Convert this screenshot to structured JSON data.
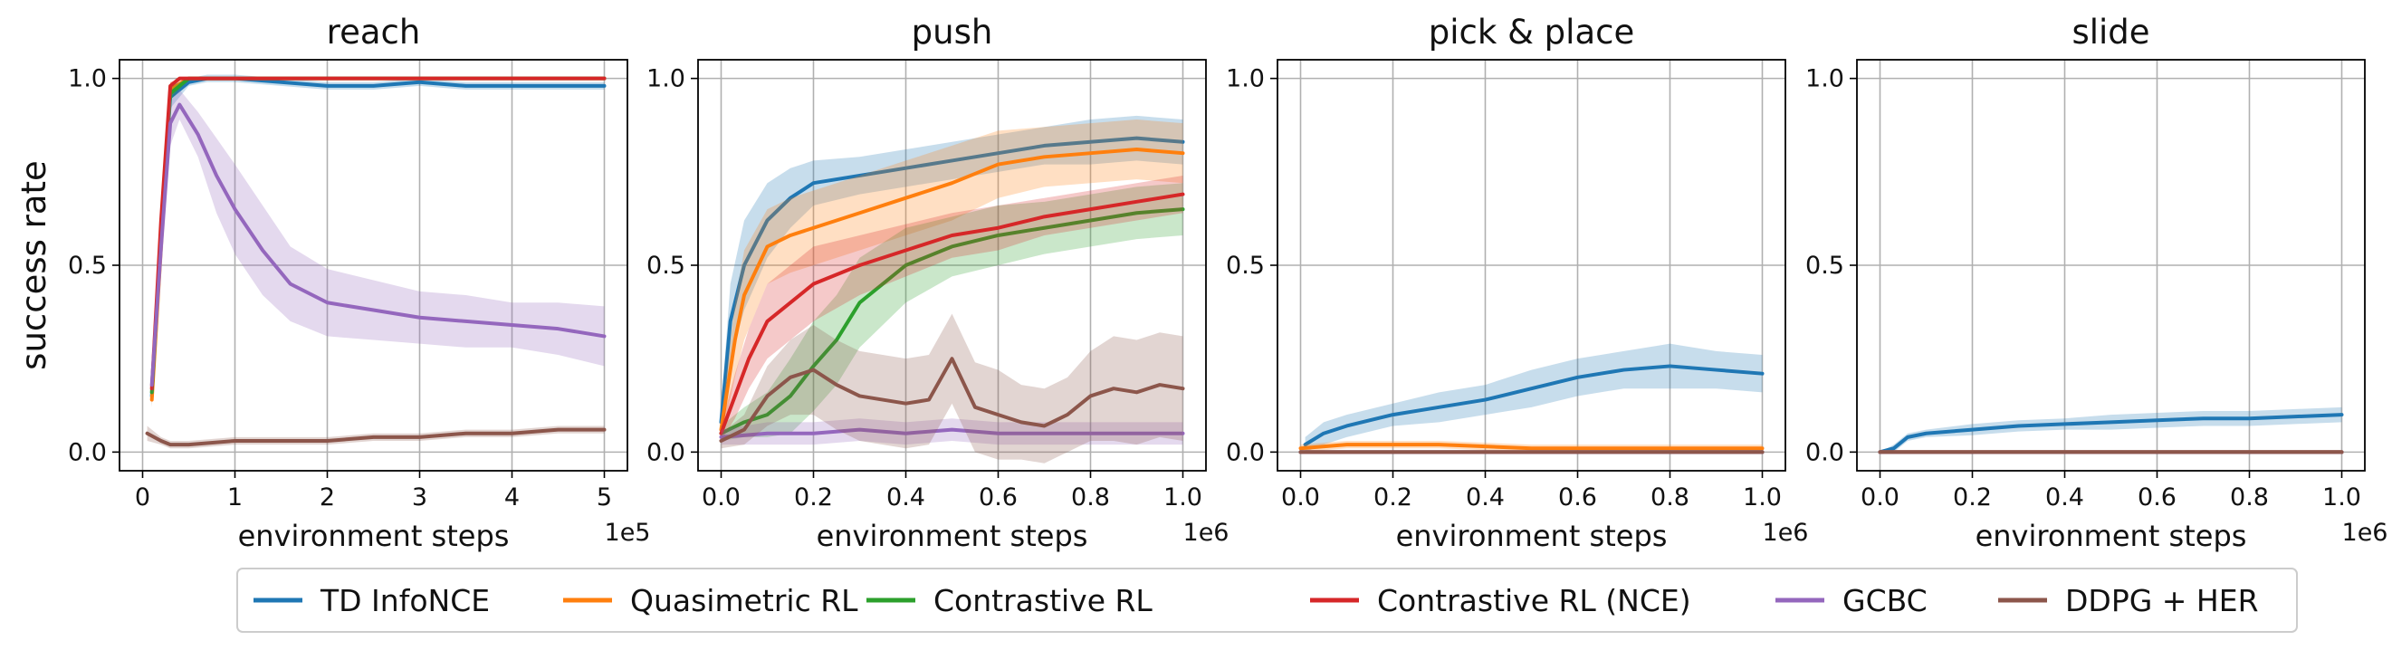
{
  "chart_data": [
    {
      "type": "line",
      "title": "reach",
      "xlabel": "environment steps",
      "ylabel": "success rate",
      "x_multiplier": "1e5",
      "xlim": [
        -0.25,
        5.25
      ],
      "ylim": [
        -0.05,
        1.05
      ],
      "xticks": [
        0,
        1,
        2,
        3,
        4,
        5
      ],
      "xtick_labels": [
        "0",
        "1",
        "2",
        "3",
        "4",
        "5"
      ],
      "yticks": [
        0.0,
        0.5,
        1.0
      ],
      "ytick_labels": [
        "0.0",
        "0.5",
        "1.0"
      ],
      "grid": true,
      "series": [
        {
          "name": "TD InfoNCE",
          "color": "#1f77b4",
          "x": [
            0.1,
            0.2,
            0.3,
            0.5,
            0.7,
            1.0,
            1.5,
            2.0,
            2.5,
            3.0,
            3.5,
            4.0,
            4.5,
            5.0
          ],
          "y": [
            0.15,
            0.6,
            0.95,
            0.99,
            1.0,
            1.0,
            0.99,
            0.98,
            0.98,
            0.99,
            0.98,
            0.98,
            0.98,
            0.98
          ],
          "band": [
            0.03,
            0.06,
            0.03,
            0.01,
            0.01,
            0.01,
            0.01,
            0.01,
            0.01,
            0.01,
            0.01,
            0.01,
            0.01,
            0.01
          ]
        },
        {
          "name": "Quasimetric RL",
          "color": "#ff7f0e",
          "x": [
            0.1,
            0.2,
            0.3,
            0.5,
            1.0,
            2.0,
            3.0,
            4.0,
            5.0
          ],
          "y": [
            0.14,
            0.55,
            0.97,
            1.0,
            1.0,
            1.0,
            1.0,
            1.0,
            1.0
          ],
          "band": [
            0.02,
            0.04,
            0.02,
            0.0,
            0.0,
            0.0,
            0.0,
            0.0,
            0.0
          ]
        },
        {
          "name": "Contrastive RL",
          "color": "#2ca02c",
          "x": [
            0.1,
            0.2,
            0.3,
            0.5,
            1.0,
            2.0,
            3.0,
            4.0,
            5.0
          ],
          "y": [
            0.16,
            0.58,
            0.96,
            1.0,
            1.0,
            1.0,
            1.0,
            1.0,
            1.0
          ],
          "band": [
            0.02,
            0.04,
            0.02,
            0.0,
            0.0,
            0.0,
            0.0,
            0.0,
            0.0
          ]
        },
        {
          "name": "Contrastive RL (NCE)",
          "color": "#d62728",
          "x": [
            0.1,
            0.2,
            0.3,
            0.4,
            0.6,
            1.0,
            2.0,
            3.0,
            4.0,
            5.0
          ],
          "y": [
            0.17,
            0.62,
            0.98,
            1.0,
            1.0,
            1.0,
            1.0,
            1.0,
            1.0,
            1.0
          ],
          "band": [
            0.02,
            0.04,
            0.01,
            0.0,
            0.0,
            0.0,
            0.0,
            0.0,
            0.0,
            0.0
          ]
        },
        {
          "name": "GCBC",
          "color": "#9467bd",
          "x": [
            0.1,
            0.2,
            0.3,
            0.4,
            0.6,
            0.8,
            1.0,
            1.3,
            1.6,
            2.0,
            2.5,
            3.0,
            3.5,
            4.0,
            4.5,
            5.0
          ],
          "y": [
            0.18,
            0.55,
            0.88,
            0.93,
            0.85,
            0.74,
            0.65,
            0.54,
            0.45,
            0.4,
            0.38,
            0.36,
            0.35,
            0.34,
            0.33,
            0.31
          ],
          "band": [
            0.04,
            0.08,
            0.06,
            0.04,
            0.06,
            0.1,
            0.12,
            0.12,
            0.1,
            0.09,
            0.08,
            0.07,
            0.07,
            0.06,
            0.07,
            0.08
          ]
        },
        {
          "name": "DDPG + HER",
          "color": "#8c564b",
          "x": [
            0.05,
            0.2,
            0.3,
            0.5,
            1.0,
            1.5,
            2.0,
            2.5,
            3.0,
            3.5,
            4.0,
            4.5,
            5.0
          ],
          "y": [
            0.05,
            0.03,
            0.02,
            0.02,
            0.03,
            0.03,
            0.03,
            0.04,
            0.04,
            0.05,
            0.05,
            0.06,
            0.06
          ],
          "band": [
            0.02,
            0.01,
            0.01,
            0.01,
            0.01,
            0.01,
            0.01,
            0.01,
            0.01,
            0.01,
            0.01,
            0.01,
            0.01
          ]
        }
      ]
    },
    {
      "type": "line",
      "title": "push",
      "xlabel": "environment steps",
      "x_multiplier": "1e6",
      "xlim": [
        -0.05,
        1.05
      ],
      "ylim": [
        -0.05,
        1.05
      ],
      "xticks": [
        0.0,
        0.2,
        0.4,
        0.6,
        0.8,
        1.0
      ],
      "xtick_labels": [
        "0.0",
        "0.2",
        "0.4",
        "0.6",
        "0.8",
        "1.0"
      ],
      "yticks": [
        0.0,
        0.5,
        1.0
      ],
      "ytick_labels": [
        "0.0",
        "0.5",
        "1.0"
      ],
      "grid": true,
      "series": [
        {
          "name": "TD InfoNCE",
          "color": "#1f77b4",
          "x": [
            0.0,
            0.02,
            0.05,
            0.1,
            0.15,
            0.2,
            0.3,
            0.4,
            0.5,
            0.6,
            0.7,
            0.8,
            0.9,
            1.0
          ],
          "y": [
            0.08,
            0.35,
            0.5,
            0.62,
            0.68,
            0.72,
            0.74,
            0.76,
            0.78,
            0.8,
            0.82,
            0.83,
            0.84,
            0.83
          ],
          "band": [
            0.04,
            0.1,
            0.12,
            0.1,
            0.08,
            0.06,
            0.05,
            0.05,
            0.05,
            0.05,
            0.05,
            0.06,
            0.06,
            0.06
          ]
        },
        {
          "name": "Quasimetric RL",
          "color": "#ff7f0e",
          "x": [
            0.0,
            0.03,
            0.05,
            0.1,
            0.15,
            0.2,
            0.3,
            0.4,
            0.5,
            0.6,
            0.7,
            0.8,
            0.9,
            1.0
          ],
          "y": [
            0.06,
            0.3,
            0.42,
            0.55,
            0.58,
            0.6,
            0.64,
            0.68,
            0.72,
            0.77,
            0.79,
            0.8,
            0.81,
            0.8
          ],
          "band": [
            0.03,
            0.1,
            0.12,
            0.1,
            0.1,
            0.1,
            0.1,
            0.1,
            0.1,
            0.09,
            0.08,
            0.08,
            0.08,
            0.08
          ]
        },
        {
          "name": "Contrastive RL",
          "color": "#2ca02c",
          "x": [
            0.0,
            0.05,
            0.1,
            0.15,
            0.2,
            0.25,
            0.3,
            0.4,
            0.5,
            0.6,
            0.7,
            0.8,
            0.9,
            1.0
          ],
          "y": [
            0.05,
            0.08,
            0.1,
            0.15,
            0.23,
            0.3,
            0.4,
            0.5,
            0.55,
            0.58,
            0.6,
            0.62,
            0.64,
            0.65
          ],
          "band": [
            0.02,
            0.04,
            0.06,
            0.1,
            0.12,
            0.12,
            0.12,
            0.1,
            0.08,
            0.08,
            0.07,
            0.07,
            0.07,
            0.07
          ]
        },
        {
          "name": "Contrastive RL (NCE)",
          "color": "#d62728",
          "x": [
            0.0,
            0.03,
            0.06,
            0.1,
            0.15,
            0.2,
            0.3,
            0.4,
            0.5,
            0.6,
            0.7,
            0.8,
            0.9,
            1.0
          ],
          "y": [
            0.05,
            0.15,
            0.25,
            0.35,
            0.4,
            0.45,
            0.5,
            0.54,
            0.58,
            0.6,
            0.63,
            0.65,
            0.67,
            0.69
          ],
          "band": [
            0.02,
            0.06,
            0.08,
            0.1,
            0.1,
            0.1,
            0.08,
            0.07,
            0.06,
            0.06,
            0.05,
            0.05,
            0.05,
            0.05
          ]
        },
        {
          "name": "GCBC",
          "color": "#9467bd",
          "x": [
            0.0,
            0.1,
            0.2,
            0.3,
            0.4,
            0.5,
            0.6,
            0.7,
            0.8,
            0.9,
            1.0
          ],
          "y": [
            0.04,
            0.05,
            0.05,
            0.06,
            0.05,
            0.06,
            0.05,
            0.05,
            0.05,
            0.05,
            0.05
          ],
          "band": [
            0.02,
            0.03,
            0.03,
            0.03,
            0.03,
            0.03,
            0.03,
            0.03,
            0.03,
            0.03,
            0.03
          ]
        },
        {
          "name": "DDPG + HER",
          "color": "#8c564b",
          "x": [
            0.0,
            0.05,
            0.1,
            0.15,
            0.2,
            0.25,
            0.3,
            0.35,
            0.4,
            0.45,
            0.5,
            0.55,
            0.6,
            0.65,
            0.7,
            0.75,
            0.8,
            0.85,
            0.9,
            0.95,
            1.0
          ],
          "y": [
            0.03,
            0.06,
            0.15,
            0.2,
            0.22,
            0.18,
            0.15,
            0.14,
            0.13,
            0.14,
            0.25,
            0.12,
            0.1,
            0.08,
            0.07,
            0.1,
            0.15,
            0.17,
            0.16,
            0.18,
            0.17
          ],
          "band": [
            0.02,
            0.04,
            0.08,
            0.1,
            0.12,
            0.12,
            0.12,
            0.12,
            0.12,
            0.12,
            0.12,
            0.12,
            0.12,
            0.1,
            0.1,
            0.1,
            0.12,
            0.14,
            0.14,
            0.14,
            0.14
          ]
        }
      ]
    },
    {
      "type": "line",
      "title": "pick & place",
      "xlabel": "environment steps",
      "x_multiplier": "1e6",
      "xlim": [
        -0.05,
        1.05
      ],
      "ylim": [
        -0.05,
        1.05
      ],
      "xticks": [
        0.0,
        0.2,
        0.4,
        0.6,
        0.8,
        1.0
      ],
      "xtick_labels": [
        "0.0",
        "0.2",
        "0.4",
        "0.6",
        "0.8",
        "1.0"
      ],
      "yticks": [
        0.0,
        0.5,
        1.0
      ],
      "ytick_labels": [
        "0.0",
        "0.5",
        "1.0"
      ],
      "grid": true,
      "series": [
        {
          "name": "TD InfoNCE",
          "color": "#1f77b4",
          "x": [
            0.01,
            0.05,
            0.1,
            0.2,
            0.3,
            0.4,
            0.5,
            0.6,
            0.7,
            0.8,
            0.9,
            1.0
          ],
          "y": [
            0.02,
            0.05,
            0.07,
            0.1,
            0.12,
            0.14,
            0.17,
            0.2,
            0.22,
            0.23,
            0.22,
            0.21
          ],
          "band": [
            0.02,
            0.03,
            0.03,
            0.03,
            0.04,
            0.04,
            0.05,
            0.05,
            0.05,
            0.06,
            0.05,
            0.05
          ]
        },
        {
          "name": "Quasimetric RL",
          "color": "#ff7f0e",
          "x": [
            0.0,
            0.1,
            0.2,
            0.3,
            0.4,
            0.5,
            0.6,
            0.7,
            0.8,
            0.9,
            1.0
          ],
          "y": [
            0.01,
            0.02,
            0.02,
            0.02,
            0.015,
            0.01,
            0.01,
            0.01,
            0.01,
            0.01,
            0.01
          ],
          "band": [
            0.01,
            0.01,
            0.01,
            0.01,
            0.01,
            0.01,
            0.01,
            0.01,
            0.01,
            0.01,
            0.01
          ]
        },
        {
          "name": "Contrastive RL",
          "color": "#2ca02c",
          "x": [
            0.0,
            0.5,
            1.0
          ],
          "y": [
            0.0,
            0.0,
            0.0
          ],
          "band": [
            0.0,
            0.0,
            0.0
          ]
        },
        {
          "name": "Contrastive RL (NCE)",
          "color": "#d62728",
          "x": [
            0.0,
            0.5,
            1.0
          ],
          "y": [
            0.0,
            0.0,
            0.0
          ],
          "band": [
            0.0,
            0.0,
            0.0
          ]
        },
        {
          "name": "GCBC",
          "color": "#9467bd",
          "x": [
            0.0,
            0.5,
            1.0
          ],
          "y": [
            0.0,
            0.0,
            0.0
          ],
          "band": [
            0.0,
            0.0,
            0.0
          ]
        },
        {
          "name": "DDPG + HER",
          "color": "#8c564b",
          "x": [
            0.0,
            0.5,
            1.0
          ],
          "y": [
            0.0,
            0.0,
            0.0
          ],
          "band": [
            0.0,
            0.0,
            0.0
          ]
        }
      ]
    },
    {
      "type": "line",
      "title": "slide",
      "xlabel": "environment steps",
      "x_multiplier": "1e6",
      "xlim": [
        -0.05,
        1.05
      ],
      "ylim": [
        -0.05,
        1.05
      ],
      "xticks": [
        0.0,
        0.2,
        0.4,
        0.6,
        0.8,
        1.0
      ],
      "xtick_labels": [
        "0.0",
        "0.2",
        "0.4",
        "0.6",
        "0.8",
        "1.0"
      ],
      "yticks": [
        0.0,
        0.5,
        1.0
      ],
      "ytick_labels": [
        "0.0",
        "0.5",
        "1.0"
      ],
      "grid": true,
      "series": [
        {
          "name": "TD InfoNCE",
          "color": "#1f77b4",
          "x": [
            0.0,
            0.03,
            0.06,
            0.1,
            0.2,
            0.3,
            0.4,
            0.5,
            0.6,
            0.7,
            0.8,
            0.9,
            1.0
          ],
          "y": [
            0.0,
            0.01,
            0.04,
            0.05,
            0.06,
            0.07,
            0.075,
            0.08,
            0.085,
            0.09,
            0.09,
            0.095,
            0.1
          ],
          "band": [
            0.0,
            0.01,
            0.01,
            0.01,
            0.015,
            0.015,
            0.015,
            0.02,
            0.02,
            0.02,
            0.02,
            0.02,
            0.02
          ]
        },
        {
          "name": "Quasimetric RL",
          "color": "#ff7f0e",
          "x": [
            0.0,
            0.5,
            1.0
          ],
          "y": [
            0.0,
            0.0,
            0.0
          ],
          "band": [
            0.0,
            0.0,
            0.0
          ]
        },
        {
          "name": "Contrastive RL",
          "color": "#2ca02c",
          "x": [
            0.0,
            0.5,
            1.0
          ],
          "y": [
            0.0,
            0.0,
            0.0
          ],
          "band": [
            0.0,
            0.0,
            0.0
          ]
        },
        {
          "name": "Contrastive RL (NCE)",
          "color": "#d62728",
          "x": [
            0.0,
            0.5,
            1.0
          ],
          "y": [
            0.0,
            0.0,
            0.0
          ],
          "band": [
            0.0,
            0.0,
            0.0
          ]
        },
        {
          "name": "GCBC",
          "color": "#9467bd",
          "x": [
            0.0,
            0.5,
            1.0
          ],
          "y": [
            0.0,
            0.0,
            0.0
          ],
          "band": [
            0.0,
            0.0,
            0.0
          ]
        },
        {
          "name": "DDPG + HER",
          "color": "#8c564b",
          "x": [
            0.0,
            0.5,
            1.0
          ],
          "y": [
            0.0,
            0.0,
            0.0
          ],
          "band": [
            0.0,
            0.0,
            0.0
          ]
        }
      ]
    }
  ],
  "legend": {
    "placement": "bottom-center",
    "entries": [
      {
        "label": "TD InfoNCE",
        "color": "#1f77b4"
      },
      {
        "label": "Quasimetric RL",
        "color": "#ff7f0e"
      },
      {
        "label": "Contrastive RL",
        "color": "#2ca02c"
      },
      {
        "label": "Contrastive RL (NCE)",
        "color": "#d62728"
      },
      {
        "label": "GCBC",
        "color": "#9467bd"
      },
      {
        "label": "DDPG + HER",
        "color": "#8c564b"
      }
    ]
  }
}
